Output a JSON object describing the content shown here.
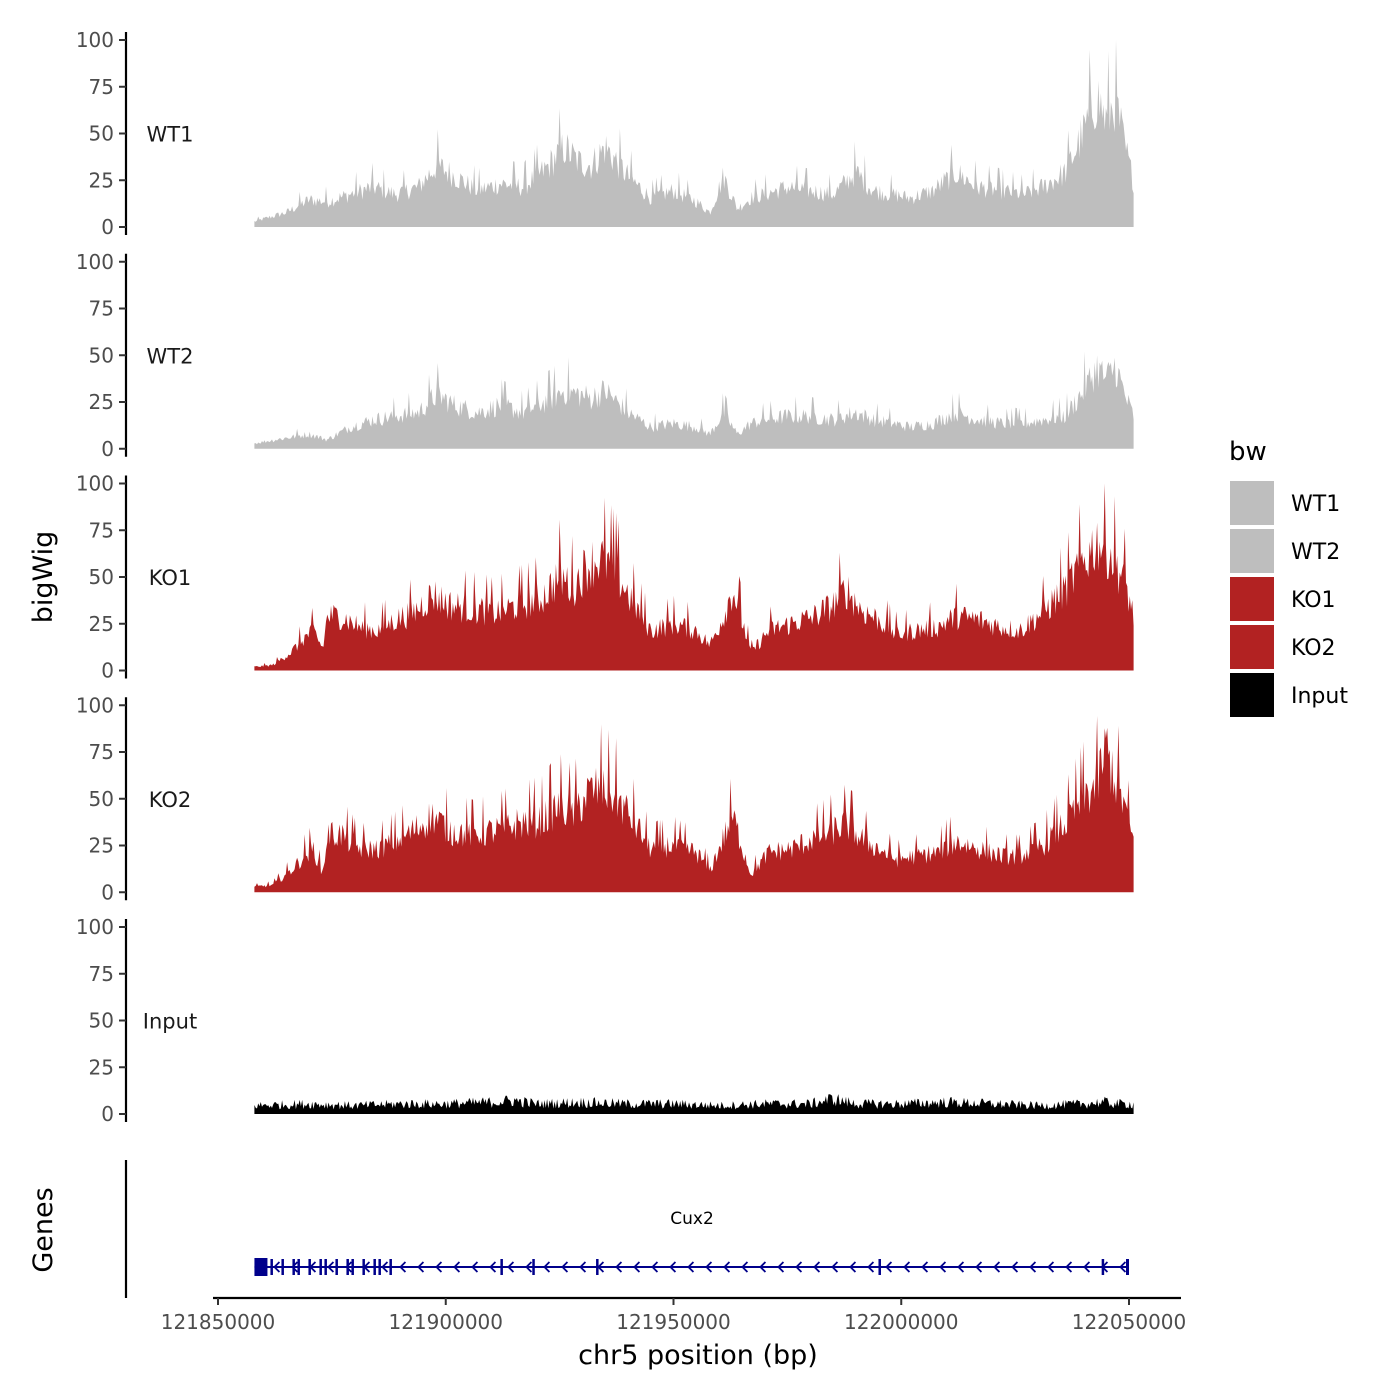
{
  "chart_data": {
    "type": "area",
    "ylabel": "bigWig",
    "xlabel": "chr5 position (bp)",
    "ylim": [
      0,
      100
    ],
    "yticks": [
      0,
      25,
      50,
      75,
      100
    ],
    "xlim": [
      121843000,
      122060000
    ],
    "xrange_data": [
      121858000,
      122051000
    ],
    "xticks": [
      121850000,
      121900000,
      121950000,
      122000000,
      122050000
    ],
    "xtick_labels": [
      "121850000",
      "121900000",
      "121950000",
      "122000000",
      "122050000"
    ],
    "legend": {
      "title": "bw",
      "position": "right",
      "entries": [
        {
          "label": "WT1",
          "color": "#bebebe"
        },
        {
          "label": "WT2",
          "color": "#bebebe"
        },
        {
          "label": "KO1",
          "color": "#b22222"
        },
        {
          "label": "KO2",
          "color": "#b22222"
        },
        {
          "label": "Input",
          "color": "#000000"
        }
      ]
    },
    "series": [
      {
        "name": "WT1",
        "color": "#bebebe",
        "x": [
          121858000,
          121865000,
          121870000,
          121874000,
          121879000,
          121884000,
          121889000,
          121894000,
          121898000,
          121902000,
          121907000,
          121912000,
          121917000,
          121922000,
          121926000,
          121929000,
          121932000,
          121935000,
          121940000,
          121945000,
          121950000,
          121955000,
          121958000,
          121961000,
          121964000,
          121967000,
          121970000,
          121975000,
          121980000,
          121985000,
          121990000,
          121994000,
          121998000,
          122002000,
          122007000,
          122012000,
          122017000,
          122022000,
          122027000,
          122031000,
          122036000,
          122040000,
          122043000,
          122045000,
          122047000,
          122049000,
          122051000
        ],
        "values": [
          3,
          8,
          15,
          14,
          18,
          22,
          18,
          22,
          34,
          28,
          20,
          24,
          22,
          32,
          44,
          36,
          34,
          44,
          28,
          16,
          20,
          14,
          8,
          28,
          10,
          16,
          18,
          22,
          20,
          18,
          30,
          20,
          18,
          16,
          20,
          30,
          22,
          20,
          18,
          22,
          30,
          52,
          72,
          58,
          70,
          45,
          25
        ]
      },
      {
        "name": "WT2",
        "color": "#bebebe",
        "x": [
          121858000,
          121865000,
          121870000,
          121874000,
          121879000,
          121884000,
          121889000,
          121894000,
          121898000,
          121902000,
          121907000,
          121912000,
          121917000,
          121922000,
          121926000,
          121929000,
          121932000,
          121935000,
          121940000,
          121945000,
          121950000,
          121955000,
          121958000,
          121961000,
          121964000,
          121967000,
          121970000,
          121975000,
          121980000,
          121985000,
          121990000,
          121994000,
          121998000,
          122002000,
          122007000,
          122012000,
          122017000,
          122022000,
          122027000,
          122031000,
          122036000,
          122040000,
          122043000,
          122045000,
          122047000,
          122049000,
          122051000
        ],
        "values": [
          3,
          6,
          8,
          5,
          12,
          16,
          18,
          20,
          30,
          24,
          20,
          24,
          20,
          26,
          32,
          30,
          28,
          32,
          20,
          12,
          14,
          12,
          8,
          20,
          8,
          14,
          16,
          18,
          18,
          16,
          20,
          16,
          14,
          12,
          14,
          20,
          16,
          14,
          14,
          16,
          18,
          32,
          45,
          38,
          46,
          30,
          18
        ]
      },
      {
        "name": "KO1",
        "color": "#b22222",
        "x": [
          121858000,
          121862000,
          121866000,
          121869000,
          121871000,
          121873000,
          121874000,
          121877000,
          121881000,
          121885000,
          121889000,
          121893000,
          121897000,
          121901000,
          121906000,
          121911000,
          121916000,
          121921000,
          121925000,
          121928000,
          121931000,
          121934000,
          121937000,
          121941000,
          121945000,
          121950000,
          121955000,
          121958000,
          121961000,
          121963000,
          121965000,
          121967000,
          121971000,
          121976000,
          121981000,
          121985000,
          121988000,
          121991000,
          121995000,
          121999000,
          122003000,
          122008000,
          122012000,
          122017000,
          122022000,
          122026000,
          122031000,
          122036000,
          122040000,
          122043000,
          122045000,
          122047000,
          122049000,
          122051000
        ],
        "values": [
          2,
          3,
          10,
          18,
          22,
          12,
          30,
          30,
          24,
          22,
          28,
          32,
          42,
          36,
          34,
          32,
          36,
          40,
          52,
          46,
          58,
          62,
          56,
          38,
          22,
          26,
          22,
          14,
          30,
          45,
          28,
          10,
          22,
          26,
          30,
          36,
          45,
          34,
          28,
          20,
          22,
          24,
          30,
          28,
          24,
          22,
          32,
          45,
          60,
          72,
          68,
          60,
          50,
          30
        ]
      },
      {
        "name": "KO2",
        "color": "#b22222",
        "x": [
          121858000,
          121862000,
          121866000,
          121869000,
          121871000,
          121873000,
          121874000,
          121877000,
          121881000,
          121885000,
          121889000,
          121893000,
          121897000,
          121901000,
          121906000,
          121911000,
          121916000,
          121921000,
          121925000,
          121928000,
          121931000,
          121934000,
          121937000,
          121941000,
          121945000,
          121950000,
          121955000,
          121958000,
          121961000,
          121963000,
          121965000,
          121967000,
          121971000,
          121976000,
          121981000,
          121985000,
          121988000,
          121991000,
          121995000,
          121999000,
          122003000,
          122008000,
          122012000,
          122017000,
          122022000,
          122026000,
          122031000,
          122036000,
          122040000,
          122043000,
          122045000,
          122047000,
          122049000,
          122051000
        ],
        "values": [
          3,
          4,
          12,
          20,
          24,
          10,
          32,
          32,
          24,
          24,
          28,
          34,
          42,
          34,
          32,
          34,
          38,
          40,
          48,
          44,
          54,
          58,
          54,
          40,
          24,
          26,
          22,
          12,
          30,
          42,
          26,
          10,
          22,
          24,
          30,
          34,
          38,
          30,
          24,
          18,
          20,
          22,
          28,
          24,
          20,
          20,
          26,
          38,
          52,
          60,
          80,
          62,
          48,
          28
        ]
      },
      {
        "name": "Input",
        "color": "#000000",
        "x": [
          121858000,
          121870000,
          121880000,
          121890000,
          121900000,
          121910000,
          121915000,
          121920000,
          121930000,
          121940000,
          121950000,
          121960000,
          121970000,
          121980000,
          121985000,
          121990000,
          122000000,
          122010000,
          122020000,
          122030000,
          122040000,
          122044000,
          122048000,
          122051000
        ],
        "values": [
          5,
          6,
          5,
          6,
          6,
          7,
          8,
          6,
          7,
          6,
          6,
          5,
          6,
          6,
          9,
          6,
          6,
          7,
          6,
          5,
          6,
          7,
          6,
          6
        ]
      }
    ],
    "genes_track": {
      "label": "Genes",
      "gene_name": "Cux2",
      "strand": "-",
      "color": "#00008b",
      "start": 121858000,
      "end": 122050000
    }
  }
}
